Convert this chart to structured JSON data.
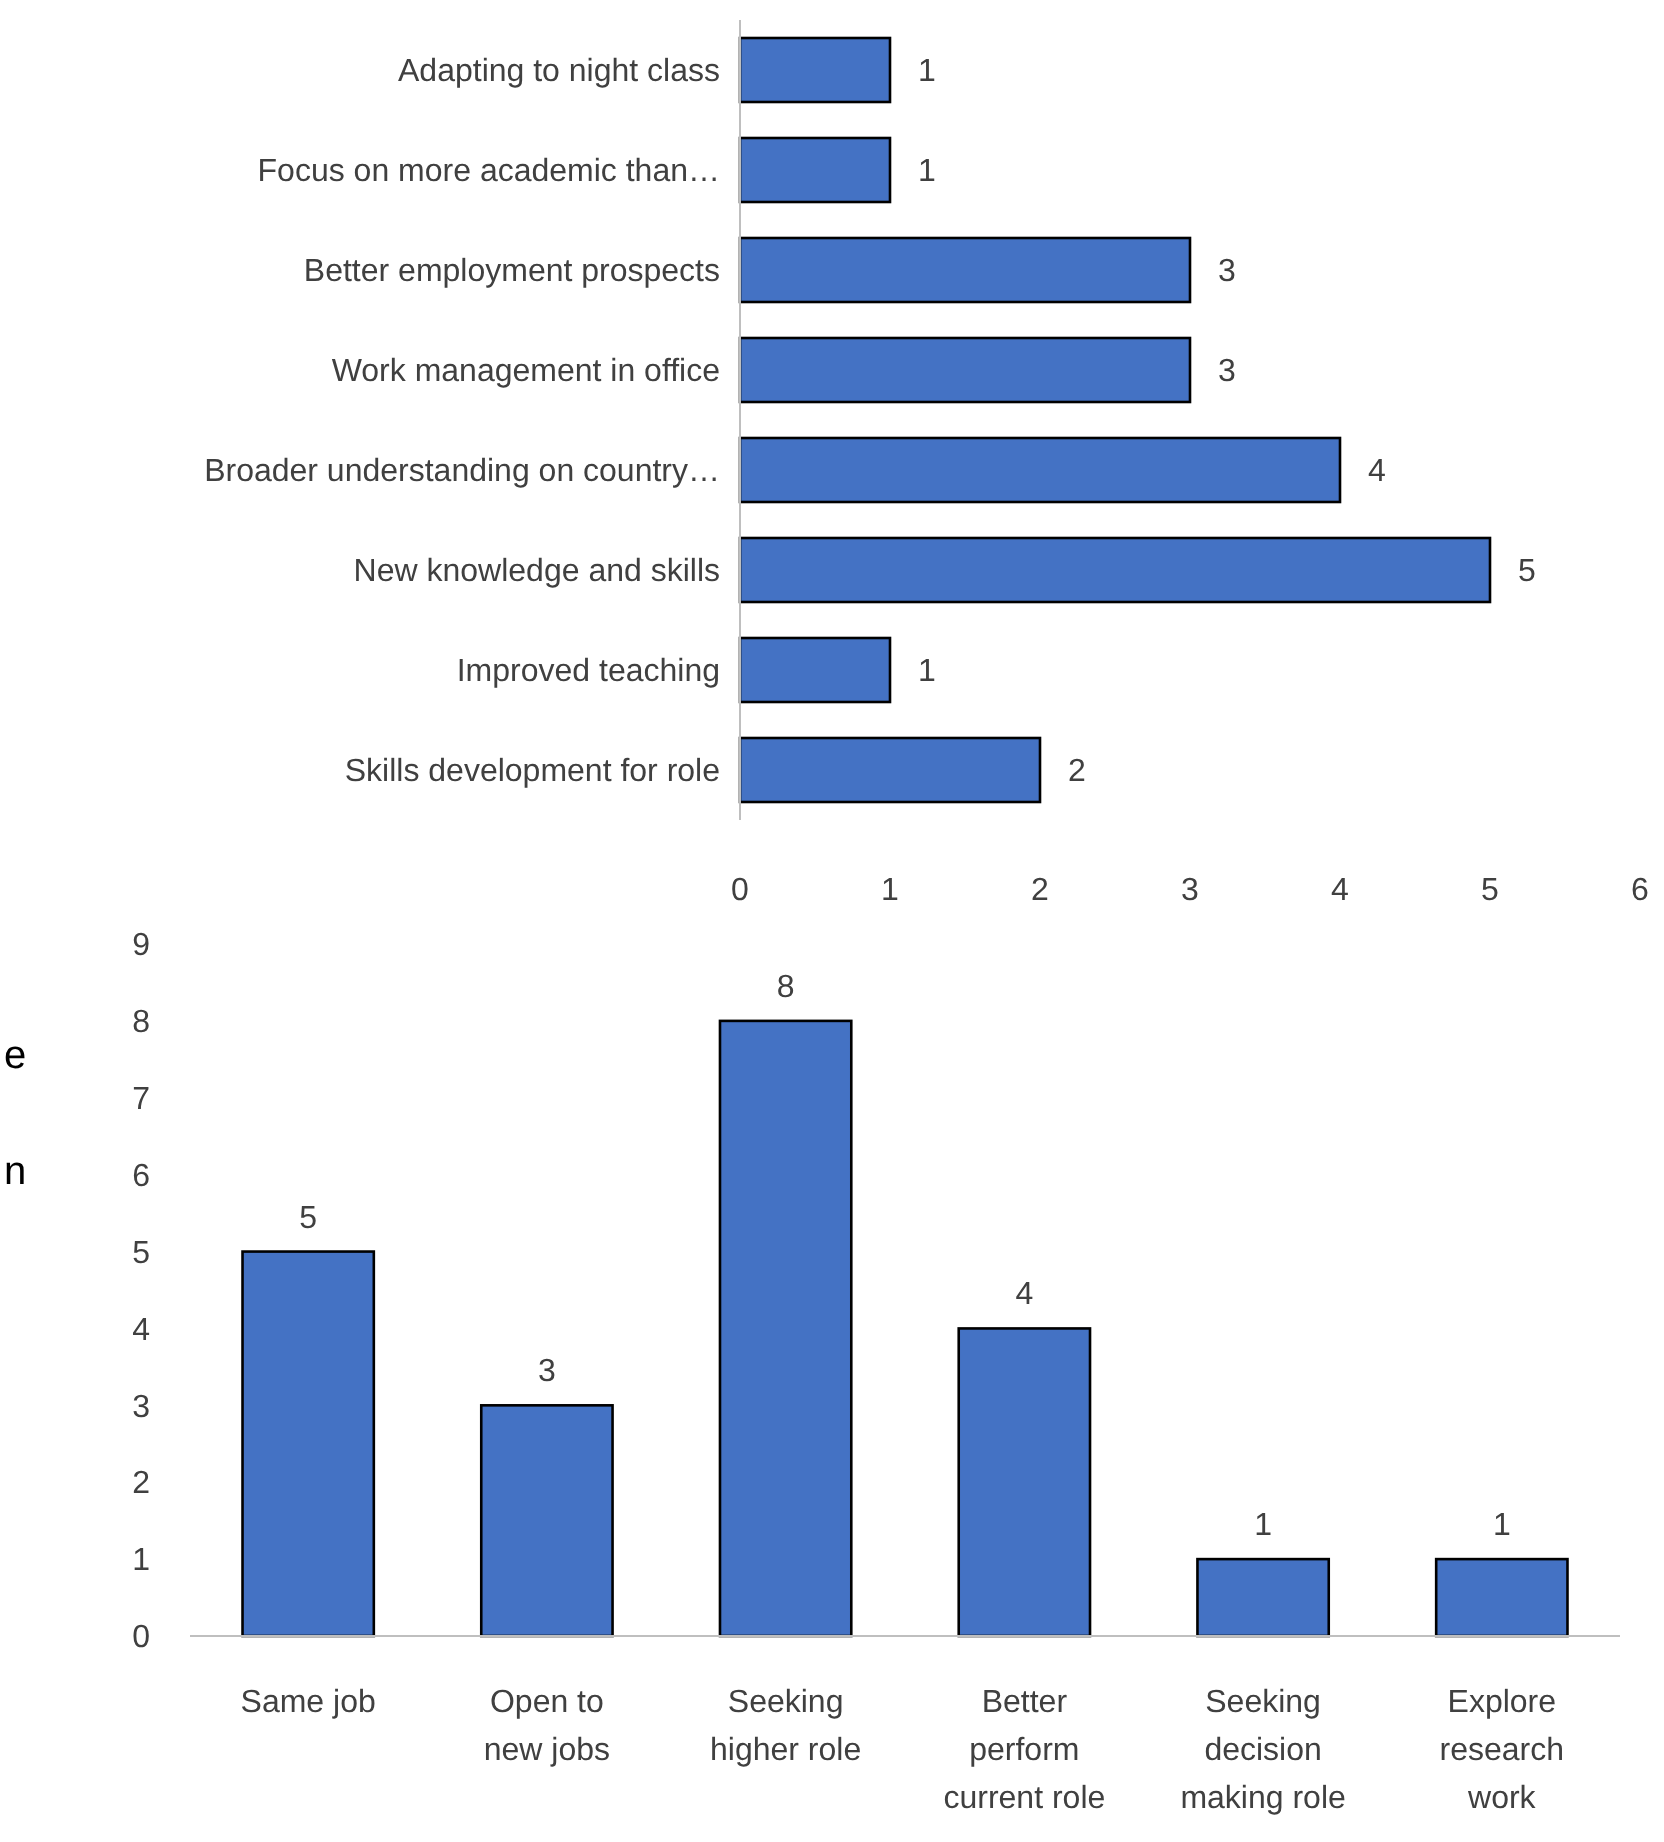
{
  "chart_data": [
    {
      "type": "bar",
      "orientation": "horizontal",
      "categories": [
        "Adapting to night class",
        "Focus on more academic than…",
        "Better employment prospects",
        "Work management in office",
        "Broader understanding on country…",
        "New knowledge and skills",
        "Improved teaching",
        "Skills development for role"
      ],
      "series": [
        {
          "color": "#4472c4",
          "values": [
            1,
            1,
            3,
            3,
            4,
            5,
            1,
            2
          ]
        }
      ],
      "xlim": [
        0,
        6
      ],
      "xticks": [
        0,
        1,
        2,
        3,
        4,
        5,
        6
      ],
      "data_labels": true
    },
    {
      "type": "bar",
      "categories": [
        "Same job",
        "Open to new jobs",
        "Seeking higher role",
        "Better perform current role",
        "Seeking decision making role",
        "Explore research work"
      ],
      "series": [
        {
          "color": "#4472c4",
          "values": [
            5,
            3,
            8,
            4,
            1,
            1
          ]
        }
      ],
      "ylim": [
        0,
        9
      ],
      "yticks": [
        0,
        1,
        2,
        3,
        4,
        5,
        6,
        7,
        8,
        9
      ],
      "data_labels": true,
      "annotations": [
        "e",
        "n"
      ]
    }
  ]
}
